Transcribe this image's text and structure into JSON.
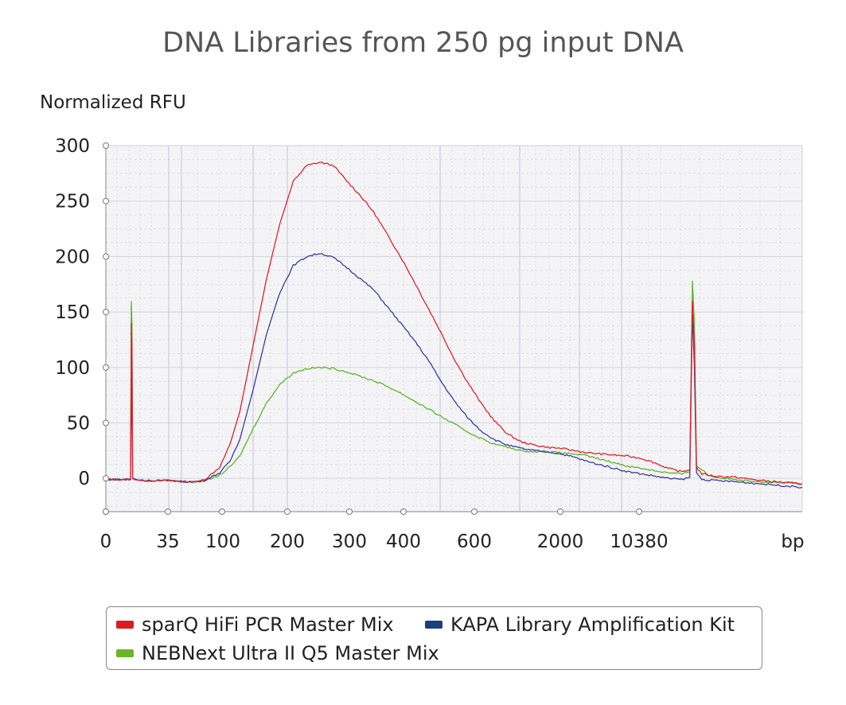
{
  "chart_data": {
    "type": "line",
    "title": "DNA Libraries from 250 pg input DNA",
    "ylabel": "Normalized RFU",
    "xlabel": "bp",
    "ylim": [
      -30,
      300
    ],
    "y_ticks": [
      0,
      50,
      100,
      150,
      200,
      250,
      300
    ],
    "x_ticks": [
      "0",
      "35",
      "100",
      "200",
      "300",
      "400",
      "600",
      "2000",
      "10380"
    ],
    "grid": true,
    "legend_position": "bottom",
    "series": [
      {
        "name": "sparQ HiFi PCR Master Mix",
        "color": "#e0212b",
        "points": [
          [
            0,
            -1
          ],
          [
            35,
            -1
          ],
          [
            37,
            -1
          ],
          [
            38,
            140
          ],
          [
            39,
            120
          ],
          [
            40,
            0
          ],
          [
            45,
            -1
          ],
          [
            55,
            -2
          ],
          [
            80,
            -2
          ],
          [
            100,
            -2
          ],
          [
            115,
            -3
          ],
          [
            125,
            -3
          ],
          [
            138,
            -3
          ],
          [
            150,
            0
          ],
          [
            170,
            10
          ],
          [
            185,
            30
          ],
          [
            200,
            60
          ],
          [
            220,
            120
          ],
          [
            240,
            180
          ],
          [
            260,
            230
          ],
          [
            280,
            268
          ],
          [
            300,
            282
          ],
          [
            320,
            285
          ],
          [
            340,
            282
          ],
          [
            360,
            268
          ],
          [
            380,
            255
          ],
          [
            400,
            240
          ],
          [
            420,
            220
          ],
          [
            440,
            200
          ],
          [
            460,
            178
          ],
          [
            480,
            155
          ],
          [
            500,
            132
          ],
          [
            520,
            108
          ],
          [
            540,
            87
          ],
          [
            560,
            68
          ],
          [
            580,
            52
          ],
          [
            600,
            40
          ],
          [
            620,
            33
          ],
          [
            640,
            30
          ],
          [
            660,
            28
          ],
          [
            680,
            27
          ],
          [
            700,
            25
          ],
          [
            720,
            23
          ],
          [
            740,
            22
          ],
          [
            760,
            21
          ],
          [
            780,
            20
          ],
          [
            800,
            18
          ],
          [
            820,
            14
          ],
          [
            840,
            9
          ],
          [
            860,
            6
          ],
          [
            872,
            8
          ],
          [
            876,
            160
          ],
          [
            879,
            120
          ],
          [
            882,
            10
          ],
          [
            890,
            4
          ],
          [
            910,
            2
          ],
          [
            940,
            1
          ],
          [
            980,
            -2
          ],
          [
            1040,
            -5
          ]
        ]
      },
      {
        "name": "KAPA Library Amplification Kit",
        "color": "#3a3aa8",
        "points": [
          [
            0,
            -1
          ],
          [
            35,
            -1
          ],
          [
            37,
            -1
          ],
          [
            38,
            100
          ],
          [
            39,
            60
          ],
          [
            40,
            0
          ],
          [
            45,
            -1
          ],
          [
            55,
            -2
          ],
          [
            80,
            -2
          ],
          [
            100,
            -2
          ],
          [
            115,
            -3
          ],
          [
            125,
            -3
          ],
          [
            138,
            -3
          ],
          [
            150,
            -1
          ],
          [
            170,
            5
          ],
          [
            185,
            15
          ],
          [
            200,
            35
          ],
          [
            220,
            80
          ],
          [
            240,
            130
          ],
          [
            260,
            168
          ],
          [
            280,
            192
          ],
          [
            300,
            200
          ],
          [
            320,
            203
          ],
          [
            340,
            199
          ],
          [
            360,
            190
          ],
          [
            380,
            180
          ],
          [
            400,
            170
          ],
          [
            420,
            155
          ],
          [
            440,
            140
          ],
          [
            460,
            125
          ],
          [
            480,
            108
          ],
          [
            500,
            88
          ],
          [
            520,
            70
          ],
          [
            540,
            55
          ],
          [
            560,
            43
          ],
          [
            580,
            35
          ],
          [
            600,
            30
          ],
          [
            620,
            27
          ],
          [
            640,
            25
          ],
          [
            660,
            24
          ],
          [
            680,
            22
          ],
          [
            700,
            19
          ],
          [
            720,
            15
          ],
          [
            740,
            12
          ],
          [
            760,
            9
          ],
          [
            780,
            6
          ],
          [
            800,
            4
          ],
          [
            820,
            2
          ],
          [
            840,
            0
          ],
          [
            860,
            -1
          ],
          [
            872,
            1
          ],
          [
            876,
            150
          ],
          [
            879,
            100
          ],
          [
            882,
            5
          ],
          [
            890,
            -1
          ],
          [
            910,
            -2
          ],
          [
            940,
            -3
          ],
          [
            980,
            -5
          ],
          [
            1040,
            -8
          ]
        ]
      },
      {
        "name": "NEBNext Ultra II Q5 Master Mix",
        "color": "#5ab52a",
        "points": [
          [
            0,
            -1
          ],
          [
            35,
            -1
          ],
          [
            37,
            -1
          ],
          [
            38,
            160
          ],
          [
            39,
            140
          ],
          [
            40,
            0
          ],
          [
            45,
            -1
          ],
          [
            55,
            -2
          ],
          [
            80,
            -2
          ],
          [
            100,
            -2
          ],
          [
            115,
            -3
          ],
          [
            125,
            -3
          ],
          [
            138,
            -3
          ],
          [
            150,
            -2
          ],
          [
            170,
            3
          ],
          [
            185,
            10
          ],
          [
            200,
            20
          ],
          [
            220,
            45
          ],
          [
            240,
            68
          ],
          [
            260,
            85
          ],
          [
            280,
            95
          ],
          [
            300,
            99
          ],
          [
            320,
            100
          ],
          [
            340,
            99
          ],
          [
            360,
            96
          ],
          [
            380,
            92
          ],
          [
            400,
            88
          ],
          [
            420,
            83
          ],
          [
            440,
            77
          ],
          [
            460,
            70
          ],
          [
            480,
            63
          ],
          [
            500,
            56
          ],
          [
            520,
            49
          ],
          [
            540,
            42
          ],
          [
            560,
            36
          ],
          [
            580,
            31
          ],
          [
            600,
            28
          ],
          [
            620,
            25
          ],
          [
            640,
            24
          ],
          [
            660,
            24
          ],
          [
            680,
            23
          ],
          [
            700,
            22
          ],
          [
            720,
            20
          ],
          [
            740,
            17
          ],
          [
            760,
            14
          ],
          [
            780,
            11
          ],
          [
            800,
            9
          ],
          [
            820,
            7
          ],
          [
            840,
            5
          ],
          [
            860,
            4
          ],
          [
            872,
            6
          ],
          [
            876,
            178
          ],
          [
            879,
            140
          ],
          [
            882,
            12
          ],
          [
            890,
            8
          ],
          [
            900,
            3
          ],
          [
            910,
            1
          ],
          [
            940,
            -1
          ],
          [
            980,
            -3
          ],
          [
            1040,
            -5
          ]
        ]
      }
    ]
  },
  "legend": {
    "items": [
      {
        "label": "sparQ HiFi PCR Master Mix",
        "color": "#d91c24"
      },
      {
        "label": "KAPA Library Amplification Kit",
        "color": "#1b3f7a"
      },
      {
        "label": "NEBNext Ultra II Q5 Master Mix",
        "color": "#6ab52a"
      }
    ]
  }
}
